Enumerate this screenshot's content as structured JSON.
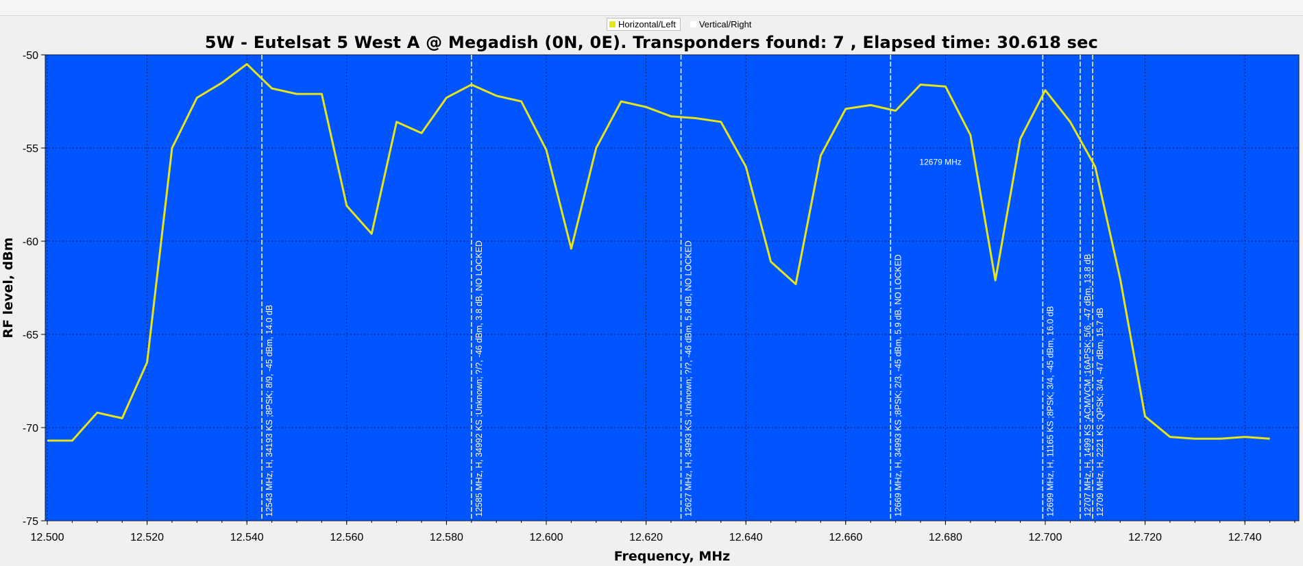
{
  "legend": {
    "items": [
      {
        "label": "Horizontal/Left",
        "color": "#e5e51a",
        "active": true
      },
      {
        "label": "Vertical/Right",
        "color": "#ffffff",
        "active": false
      }
    ]
  },
  "chart_data": {
    "type": "line",
    "title": "5W - Eutelsat 5 West A @ Megadish (0N, 0E). Transponders found: 7 , Elapsed time: 30.618 sec",
    "xlabel": "Frequency, MHz",
    "ylabel": "RF level, dBm",
    "xlim": [
      12.5,
      12.75
    ],
    "ylim": [
      -75,
      -50
    ],
    "x_ticks": [
      "12.500",
      "12.520",
      "12.540",
      "12.560",
      "12.580",
      "12.600",
      "12.620",
      "12.640",
      "12.660",
      "12.680",
      "12.700",
      "12.720",
      "12.740"
    ],
    "y_ticks": [
      "-50",
      "-55",
      "-60",
      "-65",
      "-70",
      "-75"
    ],
    "grid": true,
    "background_color": "#0055ff",
    "line_color": "#e5e51a",
    "series": [
      {
        "name": "Horizontal/Left",
        "x": [
          12.5,
          12.505,
          12.51,
          12.515,
          12.52,
          12.525,
          12.53,
          12.535,
          12.54,
          12.545,
          12.55,
          12.555,
          12.56,
          12.565,
          12.57,
          12.575,
          12.58,
          12.585,
          12.59,
          12.595,
          12.6,
          12.605,
          12.61,
          12.615,
          12.62,
          12.625,
          12.63,
          12.635,
          12.64,
          12.645,
          12.65,
          12.655,
          12.66,
          12.665,
          12.67,
          12.675,
          12.68,
          12.685,
          12.69,
          12.695,
          12.7,
          12.705,
          12.71,
          12.715,
          12.72,
          12.725,
          12.73,
          12.735,
          12.74,
          12.745
        ],
        "y": [
          -70.7,
          -70.7,
          -69.2,
          -69.5,
          -66.5,
          -55.0,
          -52.3,
          -51.5,
          -50.5,
          -51.8,
          -52.1,
          -52.1,
          -58.1,
          -59.6,
          -53.6,
          -54.2,
          -52.3,
          -51.6,
          -52.2,
          -52.5,
          -55.1,
          -60.4,
          -55.0,
          -52.5,
          -52.8,
          -53.3,
          -53.4,
          -53.6,
          -56.0,
          -61.1,
          -62.3,
          -55.4,
          -52.9,
          -52.7,
          -53.0,
          -51.6,
          -51.7,
          -54.3,
          -62.1,
          -54.5,
          -51.9,
          -53.6,
          -56.0,
          -62.0,
          -69.4,
          -70.5,
          -70.6,
          -70.6,
          -70.5,
          -70.6
        ]
      }
    ],
    "transponders": [
      {
        "freq": 12.543,
        "label": "12543 MHz, H, 34193 KS ;8PSK; 8/9, -45 dBm, 14.0 dB"
      },
      {
        "freq": 12.585,
        "label": "12585 MHz, H, 34992 KS ;Unknown; ?/?, -46 dBm, 3.8 dB, NO LOCKED"
      },
      {
        "freq": 12.627,
        "label": "12627 MHz, H, 34993 KS ;Unknown; ?/?, -46 dBm, 5.8 dB, NO LOCKED"
      },
      {
        "freq": 12.669,
        "label": "12669 MHz, H, 34993 KS ;8PSK; 2/3, -45 dBm, 5.9 dB, NO LOCKED"
      },
      {
        "freq": 12.6995,
        "label": "12699 MHz, H, 11165 KS ;8PSK; 3/4, -45 dBm, 16.0 dB"
      },
      {
        "freq": 12.707,
        "label": "12707 MHz, H, 1499 KS ;ACM/VCM ;16APSK; 5/6, -47 dBm, 13.8 dB"
      },
      {
        "freq": 12.7095,
        "label": "12709 MHz, H, 2221 KS ;QPSK; 3/4, -47 dBm, 15.7 dB"
      }
    ],
    "annotations": [
      {
        "x": 12.679,
        "y": -55.9,
        "text": "12679 MHz"
      }
    ]
  }
}
